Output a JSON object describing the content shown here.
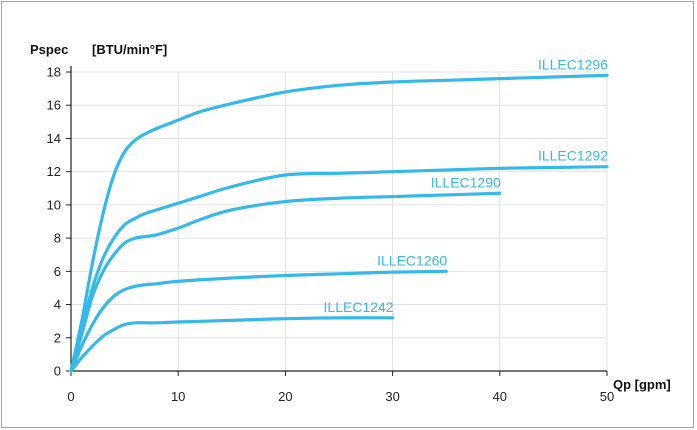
{
  "chart_data": {
    "type": "line",
    "title": "",
    "ylabel": "Pspec",
    "yunit": "[BTU/min°F]",
    "xlabel": "Qp [gpm]",
    "xlim": [
      0,
      50
    ],
    "ylim": [
      0,
      18
    ],
    "xticks": [
      0,
      10,
      20,
      30,
      40,
      50
    ],
    "yticks": [
      0,
      2,
      4,
      6,
      8,
      10,
      12,
      14,
      16,
      18
    ],
    "grid": true,
    "legend": "inline-labels",
    "line_color": "#35b9e9",
    "series": [
      {
        "name": "ILLEC1296",
        "x": [
          0,
          1,
          2,
          3,
          4,
          5,
          6,
          7,
          8,
          10,
          12,
          15,
          20,
          25,
          30,
          35,
          40,
          45,
          50
        ],
        "y": [
          0,
          3,
          6.5,
          9.5,
          11.8,
          13.2,
          13.9,
          14.3,
          14.6,
          15.1,
          15.6,
          16.1,
          16.8,
          17.2,
          17.4,
          17.5,
          17.6,
          17.7,
          17.8
        ]
      },
      {
        "name": "ILLEC1292",
        "x": [
          0,
          1,
          2,
          3,
          4,
          5,
          6,
          7,
          8,
          10,
          12,
          15,
          20,
          25,
          30,
          35,
          40,
          45,
          50
        ],
        "y": [
          0,
          2.5,
          5,
          6.8,
          8,
          8.8,
          9.2,
          9.5,
          9.7,
          10.1,
          10.5,
          11.1,
          11.8,
          11.9,
          12.0,
          12.1,
          12.2,
          12.25,
          12.3
        ]
      },
      {
        "name": "ILLEC1290",
        "x": [
          0,
          1,
          2,
          3,
          4,
          5,
          6,
          7,
          8,
          10,
          12,
          15,
          20,
          25,
          30,
          35,
          40
        ],
        "y": [
          0,
          2.2,
          4.5,
          6,
          7,
          7.7,
          8.0,
          8.1,
          8.2,
          8.6,
          9.1,
          9.7,
          10.2,
          10.4,
          10.5,
          10.6,
          10.7
        ]
      },
      {
        "name": "ILLEC1260",
        "x": [
          0,
          1,
          2,
          3,
          4,
          5,
          6,
          7,
          8,
          10,
          15,
          20,
          25,
          30,
          35
        ],
        "y": [
          0,
          1.5,
          2.8,
          3.8,
          4.5,
          4.9,
          5.1,
          5.2,
          5.25,
          5.4,
          5.6,
          5.75,
          5.85,
          5.95,
          6.0
        ]
      },
      {
        "name": "ILLEC1242",
        "x": [
          0,
          1,
          2,
          3,
          4,
          5,
          6,
          7,
          8,
          10,
          15,
          20,
          25,
          30
        ],
        "y": [
          0,
          0.8,
          1.5,
          2.1,
          2.5,
          2.8,
          2.9,
          2.9,
          2.9,
          2.95,
          3.05,
          3.15,
          3.2,
          3.2
        ]
      }
    ]
  }
}
